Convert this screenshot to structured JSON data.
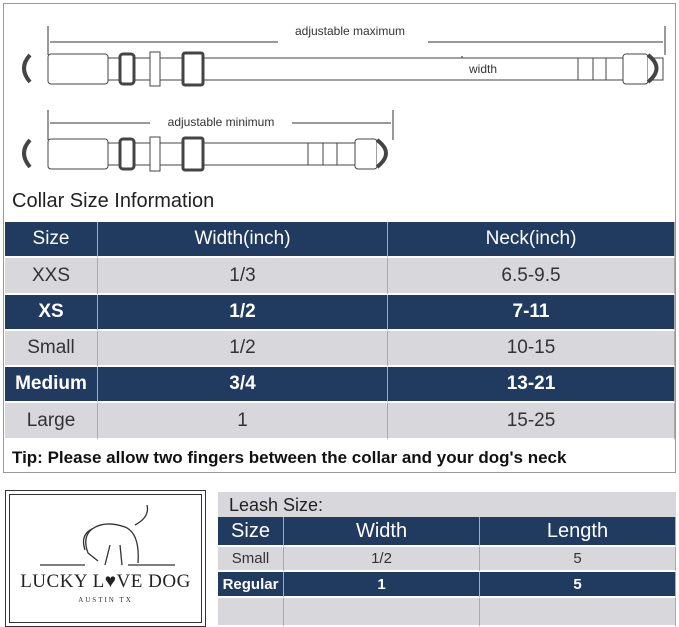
{
  "diagram": {
    "max_label": "adjustable maximum",
    "min_label": "adjustable minimum",
    "width_label": "width"
  },
  "collar": {
    "title": "Collar Size Information",
    "headers": [
      "Size",
      "Width(inch)",
      "Neck(inch)"
    ],
    "rows": [
      [
        "XXS",
        "1/3",
        "6.5-9.5"
      ],
      [
        "XS",
        "1/2",
        "7-11"
      ],
      [
        "Small",
        "1/2",
        "10-15"
      ],
      [
        "Medium",
        "3/4",
        "13-21"
      ],
      [
        "Large",
        "1",
        "15-25"
      ]
    ],
    "tip": "Tip: Please allow two fingers between the collar and your dog's neck"
  },
  "logo": {
    "name": "LUCKY L♥VE DOG",
    "location": "AUSTIN TX"
  },
  "leash": {
    "title": "Leash Size:",
    "headers": [
      "Size",
      "Width",
      "Length"
    ],
    "rows": [
      [
        "Small",
        "1/2",
        "5"
      ],
      [
        "Regular",
        "1",
        "5"
      ]
    ]
  },
  "colors": {
    "navy": "#203a60",
    "gray": "#d8d8dc"
  }
}
